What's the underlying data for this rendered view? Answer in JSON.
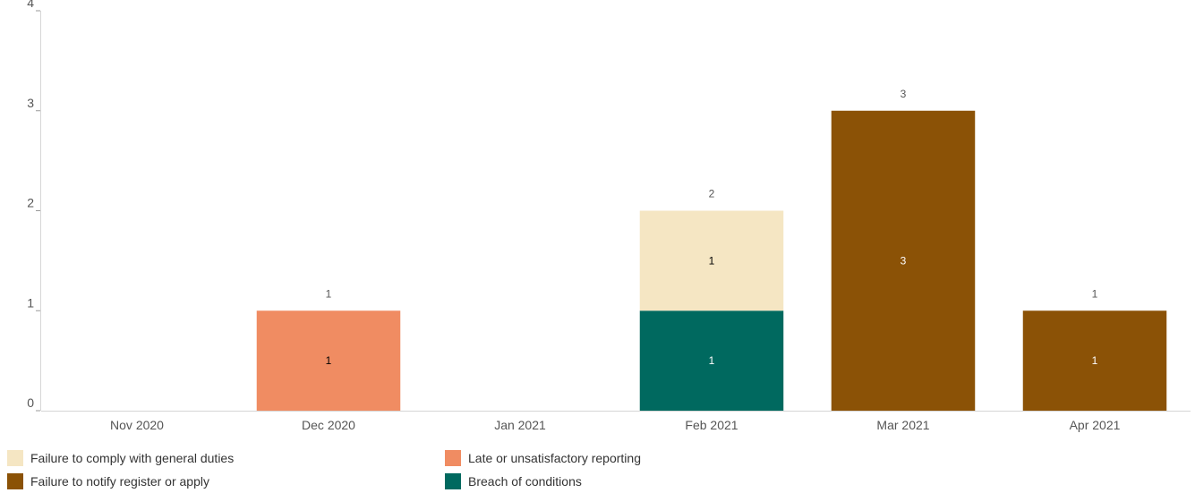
{
  "chart_data": {
    "type": "bar",
    "stacked": true,
    "categories": [
      "Nov 2020",
      "Dec 2020",
      "Jan 2021",
      "Feb 2021",
      "Mar 2021",
      "Apr 2021"
    ],
    "series": [
      {
        "name": "Breach of conditions",
        "color": "#00695f",
        "label_color": "#ffffff",
        "values": [
          0,
          0,
          0,
          1,
          0,
          0
        ]
      },
      {
        "name": "Failure to notify register or apply",
        "color": "#8b5206",
        "label_color": "#ffffff",
        "values": [
          0,
          0,
          0,
          0,
          3,
          1
        ]
      },
      {
        "name": "Late or unsatisfactory reporting",
        "color": "#f08c62",
        "label_color": "#000000",
        "values": [
          0,
          1,
          0,
          0,
          0,
          0
        ]
      },
      {
        "name": "Failure to comply with general duties",
        "color": "#f5e6c3",
        "label_color": "#000000",
        "values": [
          0,
          0,
          0,
          1,
          0,
          0
        ]
      }
    ],
    "totals": [
      0,
      1,
      0,
      2,
      3,
      1
    ],
    "yticks": [
      0,
      1,
      2,
      3,
      4
    ],
    "ylim": [
      0,
      4
    ],
    "grid": false,
    "legend_position": "bottom",
    "title": "",
    "xlabel": "",
    "ylabel": ""
  },
  "legend": {
    "items": [
      {
        "label": "Failure to comply with general duties",
        "color": "#f5e6c3"
      },
      {
        "label": "Late or unsatisfactory reporting",
        "color": "#f08c62"
      },
      {
        "label": "Failure to notify register or apply",
        "color": "#8b5206"
      },
      {
        "label": "Breach of conditions",
        "color": "#00695f"
      }
    ]
  }
}
